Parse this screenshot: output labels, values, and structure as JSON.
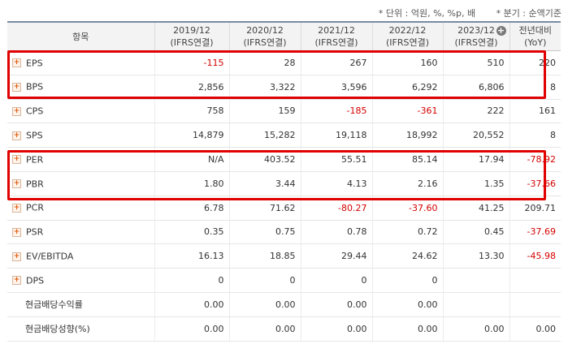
{
  "notes": {
    "unit": "* 단위 : 억원, %, %p, 배",
    "period": "* 분기 : 순액기준"
  },
  "header": {
    "item": "항목",
    "columns": [
      {
        "year": "2019/12",
        "basis": "(IFRS연결)"
      },
      {
        "year": "2020/12",
        "basis": "(IFRS연결)"
      },
      {
        "year": "2021/12",
        "basis": "(IFRS연결)"
      },
      {
        "year": "2022/12",
        "basis": "(IFRS연결)"
      },
      {
        "year": "2023/12",
        "basis": "(IFRS연결)"
      },
      {
        "year": "전년대비",
        "basis": "(YoY)"
      }
    ]
  },
  "rows": [
    {
      "label": "EPS",
      "expand": true,
      "values": [
        "-115",
        "28",
        "267",
        "160",
        "510",
        "220"
      ],
      "neg": [
        true,
        false,
        false,
        false,
        false,
        false
      ]
    },
    {
      "label": "BPS",
      "expand": true,
      "values": [
        "2,856",
        "3,322",
        "3,596",
        "6,292",
        "6,806",
        "8"
      ],
      "neg": [
        false,
        false,
        false,
        false,
        false,
        false
      ]
    },
    {
      "label": "CPS",
      "expand": true,
      "values": [
        "758",
        "159",
        "-185",
        "-361",
        "222",
        "161"
      ],
      "neg": [
        false,
        false,
        true,
        true,
        false,
        false
      ]
    },
    {
      "label": "SPS",
      "expand": true,
      "values": [
        "14,879",
        "15,282",
        "19,118",
        "18,992",
        "20,552",
        "8"
      ],
      "neg": [
        false,
        false,
        false,
        false,
        false,
        false
      ]
    },
    {
      "label": "PER",
      "expand": true,
      "values": [
        "N/A",
        "403.52",
        "55.51",
        "85.14",
        "17.94",
        "-78.92"
      ],
      "neg": [
        false,
        false,
        false,
        false,
        false,
        true
      ]
    },
    {
      "label": "PBR",
      "expand": true,
      "values": [
        "1.80",
        "3.44",
        "4.13",
        "2.16",
        "1.35",
        "-37.66"
      ],
      "neg": [
        false,
        false,
        false,
        false,
        false,
        true
      ]
    },
    {
      "label": "PCR",
      "expand": true,
      "values": [
        "6.78",
        "71.62",
        "-80.27",
        "-37.60",
        "41.25",
        "209.71"
      ],
      "neg": [
        false,
        false,
        true,
        true,
        false,
        false
      ]
    },
    {
      "label": "PSR",
      "expand": true,
      "values": [
        "0.35",
        "0.75",
        "0.78",
        "0.72",
        "0.45",
        "-37.69"
      ],
      "neg": [
        false,
        false,
        false,
        false,
        false,
        true
      ]
    },
    {
      "label": "EV/EBITDA",
      "expand": true,
      "values": [
        "16.13",
        "18.85",
        "29.44",
        "24.62",
        "13.30",
        "-45.98"
      ],
      "neg": [
        false,
        false,
        false,
        false,
        false,
        true
      ]
    },
    {
      "label": "DPS",
      "expand": true,
      "values": [
        "0",
        "0",
        "0",
        "0",
        "",
        ""
      ],
      "neg": [
        false,
        false,
        false,
        false,
        false,
        false
      ]
    },
    {
      "label": "현금배당수익률",
      "expand": false,
      "values": [
        "0.00",
        "0.00",
        "0.00",
        "0.00",
        "",
        ""
      ],
      "neg": [
        false,
        false,
        false,
        false,
        false,
        false
      ]
    },
    {
      "label": "현금배당성향(%)",
      "expand": false,
      "values": [
        "0.00",
        "0.00",
        "0.00",
        "0.00",
        "0.00",
        "0.00"
      ],
      "neg": [
        false,
        false,
        false,
        false,
        false,
        false
      ]
    }
  ]
}
